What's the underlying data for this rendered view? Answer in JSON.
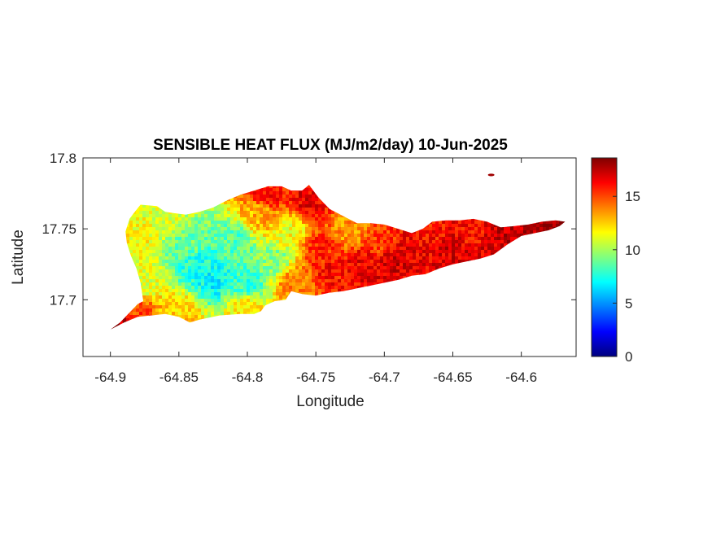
{
  "chart_data": {
    "type": "heatmap",
    "title": "SENSIBLE HEAT FLUX (MJ/m2/day) 10-Jun-2025",
    "xlabel": "Longitude",
    "ylabel": "Latitude",
    "xlim": [
      -64.92,
      -64.56
    ],
    "ylim": [
      17.66,
      17.8
    ],
    "x_ticks": [
      -64.9,
      -64.85,
      -64.8,
      -64.75,
      -64.7,
      -64.65,
      -64.6
    ],
    "x_tick_labels": [
      "-64.9",
      "-64.85",
      "-64.8",
      "-64.75",
      "-64.7",
      "-64.65",
      "-64.6"
    ],
    "y_ticks": [
      17.7,
      17.75,
      17.8
    ],
    "y_tick_labels": [
      "17.7",
      "17.75",
      "17.8"
    ],
    "colorbar": {
      "colormap": "jet",
      "range": [
        0,
        18.6
      ],
      "ticks": [
        0,
        5,
        10,
        15
      ],
      "tick_labels": [
        "0",
        "5",
        "10",
        "15"
      ]
    },
    "region_outline": [
      [
        -64.9,
        17.679
      ],
      [
        -64.893,
        17.684
      ],
      [
        -64.886,
        17.691
      ],
      [
        -64.88,
        17.697
      ],
      [
        -64.876,
        17.699
      ],
      [
        -64.878,
        17.712
      ],
      [
        -64.881,
        17.722
      ],
      [
        -64.885,
        17.731
      ],
      [
        -64.888,
        17.74
      ],
      [
        -64.889,
        17.748
      ],
      [
        -64.886,
        17.757
      ],
      [
        -64.883,
        17.761
      ],
      [
        -64.878,
        17.767
      ],
      [
        -64.866,
        17.766
      ],
      [
        -64.86,
        17.762
      ],
      [
        -64.853,
        17.761
      ],
      [
        -64.845,
        17.76
      ],
      [
        -64.835,
        17.762
      ],
      [
        -64.825,
        17.765
      ],
      [
        -64.815,
        17.77
      ],
      [
        -64.805,
        17.774
      ],
      [
        -64.795,
        17.777
      ],
      [
        -64.785,
        17.78
      ],
      [
        -64.775,
        17.78
      ],
      [
        -64.768,
        17.777
      ],
      [
        -64.76,
        17.777
      ],
      [
        -64.755,
        17.781
      ],
      [
        -64.748,
        17.772
      ],
      [
        -64.74,
        17.764
      ],
      [
        -64.73,
        17.759
      ],
      [
        -64.72,
        17.754
      ],
      [
        -64.71,
        17.754
      ],
      [
        -64.7,
        17.753
      ],
      [
        -64.69,
        17.75
      ],
      [
        -64.68,
        17.747
      ],
      [
        -64.672,
        17.75
      ],
      [
        -64.665,
        17.755
      ],
      [
        -64.655,
        17.756
      ],
      [
        -64.645,
        17.756
      ],
      [
        -64.635,
        17.757
      ],
      [
        -64.625,
        17.755
      ],
      [
        -64.615,
        17.751
      ],
      [
        -64.605,
        17.752
      ],
      [
        -64.595,
        17.753
      ],
      [
        -64.585,
        17.755
      ],
      [
        -64.575,
        17.756
      ],
      [
        -64.568,
        17.755
      ],
      [
        -64.572,
        17.752
      ],
      [
        -64.58,
        17.749
      ],
      [
        -64.59,
        17.747
      ],
      [
        -64.6,
        17.745
      ],
      [
        -64.61,
        17.739
      ],
      [
        -64.62,
        17.732
      ],
      [
        -64.63,
        17.729
      ],
      [
        -64.64,
        17.727
      ],
      [
        -64.65,
        17.725
      ],
      [
        -64.66,
        17.722
      ],
      [
        -64.67,
        17.718
      ],
      [
        -64.68,
        17.717
      ],
      [
        -64.69,
        17.714
      ],
      [
        -64.7,
        17.712
      ],
      [
        -64.71,
        17.71
      ],
      [
        -64.72,
        17.708
      ],
      [
        -64.73,
        17.706
      ],
      [
        -64.74,
        17.705
      ],
      [
        -64.75,
        17.703
      ],
      [
        -64.76,
        17.704
      ],
      [
        -64.768,
        17.706
      ],
      [
        -64.772,
        17.7
      ],
      [
        -64.78,
        17.699
      ],
      [
        -64.787,
        17.696
      ],
      [
        -64.79,
        17.692
      ],
      [
        -64.795,
        17.69
      ],
      [
        -64.805,
        17.69
      ],
      [
        -64.82,
        17.689
      ],
      [
        -64.835,
        17.686
      ],
      [
        -64.842,
        17.684
      ],
      [
        -64.85,
        17.688
      ],
      [
        -64.86,
        17.69
      ],
      [
        -64.87,
        17.689
      ],
      [
        -64.88,
        17.688
      ],
      [
        -64.89,
        17.684
      ],
      [
        -64.9,
        17.679
      ]
    ],
    "value_field": [
      {
        "lon": -64.895,
        "lat": 17.684,
        "value": 17.5
      },
      {
        "lon": -64.88,
        "lat": 17.693,
        "value": 15.0
      },
      {
        "lon": -64.88,
        "lat": 17.745,
        "value": 11.5
      },
      {
        "lon": -64.876,
        "lat": 17.71,
        "value": 11.0
      },
      {
        "lon": -64.86,
        "lat": 17.758,
        "value": 11.0
      },
      {
        "lon": -64.85,
        "lat": 17.69,
        "value": 12.5
      },
      {
        "lon": -64.845,
        "lat": 17.74,
        "value": 9.0
      },
      {
        "lon": -64.838,
        "lat": 17.724,
        "value": 7.5
      },
      {
        "lon": -64.825,
        "lat": 17.715,
        "value": 7.0
      },
      {
        "lon": -64.81,
        "lat": 17.74,
        "value": 8.5
      },
      {
        "lon": -64.8,
        "lat": 17.712,
        "value": 8.0
      },
      {
        "lon": -64.8,
        "lat": 17.694,
        "value": 12.0
      },
      {
        "lon": -64.79,
        "lat": 17.76,
        "value": 13.0
      },
      {
        "lon": -64.785,
        "lat": 17.773,
        "value": 16.0
      },
      {
        "lon": -64.78,
        "lat": 17.728,
        "value": 9.5
      },
      {
        "lon": -64.77,
        "lat": 17.748,
        "value": 11.5
      },
      {
        "lon": -64.765,
        "lat": 17.712,
        "value": 14.0
      },
      {
        "lon": -64.755,
        "lat": 17.77,
        "value": 16.5
      },
      {
        "lon": -64.745,
        "lat": 17.735,
        "value": 15.5
      },
      {
        "lon": -64.738,
        "lat": 17.72,
        "value": 16.0
      },
      {
        "lon": -64.725,
        "lat": 17.748,
        "value": 13.5
      },
      {
        "lon": -64.715,
        "lat": 17.725,
        "value": 16.5
      },
      {
        "lon": -64.705,
        "lat": 17.74,
        "value": 15.0
      },
      {
        "lon": -64.695,
        "lat": 17.725,
        "value": 17.0
      },
      {
        "lon": -64.68,
        "lat": 17.733,
        "value": 16.5
      },
      {
        "lon": -64.665,
        "lat": 17.745,
        "value": 16.0
      },
      {
        "lon": -64.65,
        "lat": 17.735,
        "value": 17.0
      },
      {
        "lon": -64.635,
        "lat": 17.745,
        "value": 16.0
      },
      {
        "lon": -64.62,
        "lat": 17.74,
        "value": 17.0
      },
      {
        "lon": -64.605,
        "lat": 17.748,
        "value": 17.5
      },
      {
        "lon": -64.585,
        "lat": 17.752,
        "value": 18.0
      },
      {
        "lon": -64.622,
        "lat": 17.788,
        "value": 18.0
      }
    ]
  }
}
